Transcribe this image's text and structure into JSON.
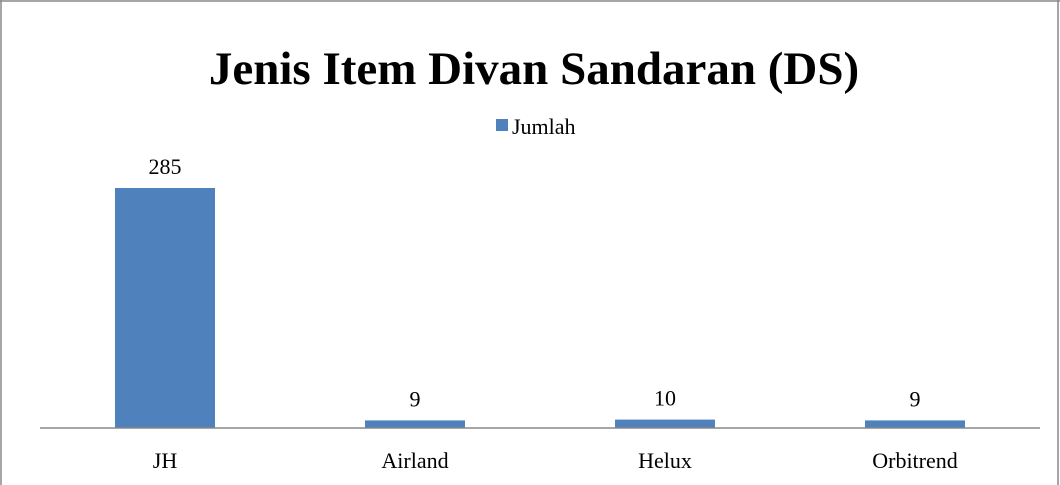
{
  "chart_data": {
    "type": "bar",
    "title": "Jenis Item Divan Sandaran (DS)",
    "xlabel": "",
    "ylabel": "",
    "categories": [
      "JH",
      "Airland",
      "Helux",
      "Orbitrend"
    ],
    "series": [
      {
        "name": "Jumlah",
        "values": [
          285,
          9,
          10,
          9
        ],
        "data_labels": [
          "285",
          "9",
          "10",
          "9"
        ],
        "color": "#4F81BD"
      }
    ],
    "ylim": [
      0,
      300
    ],
    "grid": false,
    "legend_position": "top"
  },
  "colors": {
    "frame_border": "#888888",
    "axis": "#888888"
  }
}
